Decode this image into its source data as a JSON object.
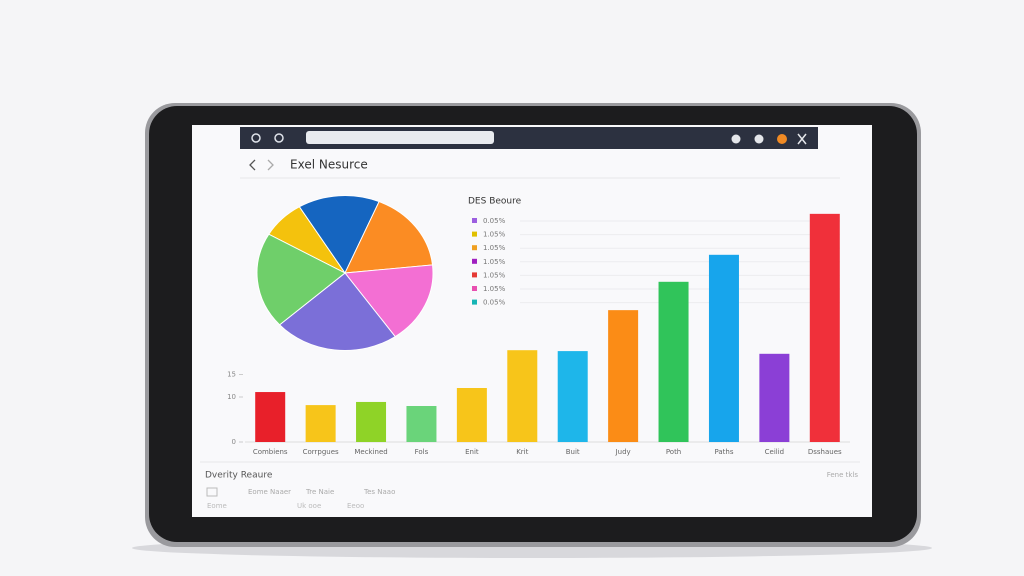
{
  "screen": {
    "title": "Exel Nesurce",
    "footer_title": "Dverity Reaure",
    "footer_note": "Fene tkls",
    "footer_items": [
      "Eome Naaer",
      "Tre Naie",
      "Tes Naao"
    ],
    "footer_subs": [
      "Eome",
      "Uk ooe",
      "Eeoo"
    ]
  },
  "chart_data": [
    {
      "type": "pie",
      "values": [
        8,
        15,
        17,
        17,
        23,
        20
      ],
      "colors": [
        "#f4c20d",
        "#1565c0",
        "#fb8c23",
        "#f36fd3",
        "#7b6fd8",
        "#6fcf6a"
      ],
      "legend": {
        "title": "DES Beoure",
        "labels": [
          "0.05%",
          "1.05%",
          "1.05%",
          "1.05%",
          "1.05%",
          "1.05%",
          "0.05%"
        ],
        "colors": [
          "#9c5fe0",
          "#e0c000",
          "#f0a020",
          "#a020c0",
          "#e53935",
          "#e84fb0",
          "#17b5b5"
        ]
      }
    },
    {
      "type": "bar",
      "categories": [
        "Combiens",
        "Corrpgues",
        "Meckined",
        "Fols",
        "Enit",
        "Krit",
        "Buit",
        "Judy",
        "Poth",
        "Paths",
        "Ceilid",
        "Dsshaues"
      ],
      "values": [
        11.1,
        8.2,
        8.9,
        8,
        12,
        20.4,
        20.2,
        29.3,
        35.6,
        41.6,
        19.6,
        50.7
      ],
      "colors": [
        "#e8202a",
        "#f7c51a",
        "#8fd327",
        "#6ad47a",
        "#f7c51a",
        "#f7c51a",
        "#1eb6ea",
        "#fb8c16",
        "#30c45a",
        "#17a5ec",
        "#8b3fd6",
        "#f0303a"
      ],
      "ylim": [
        0,
        52
      ],
      "yticks": [
        0,
        10,
        15
      ]
    }
  ]
}
